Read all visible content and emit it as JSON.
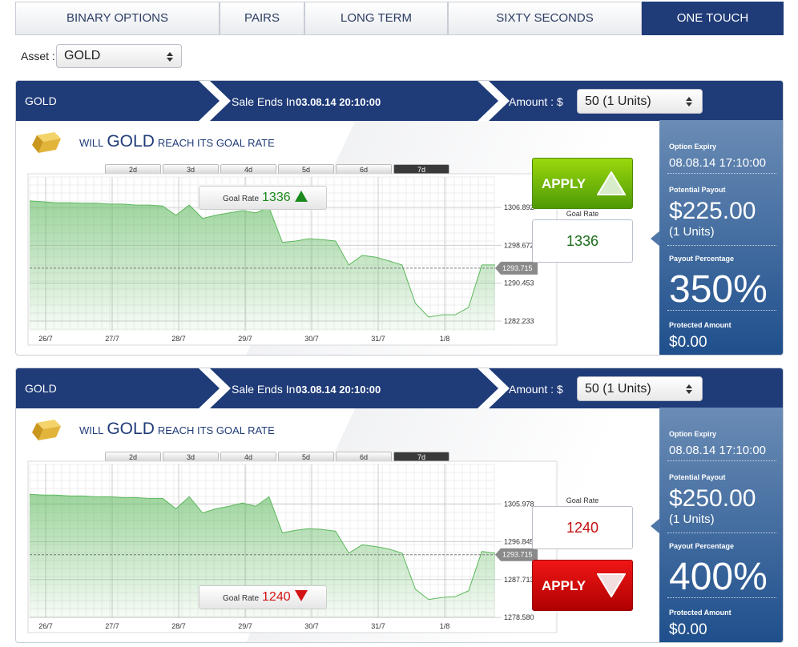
{
  "tabs": [
    "BINARY OPTIONS",
    "PAIRS",
    "LONG TERM",
    "SIXTY SECONDS",
    "ONE TOUCH"
  ],
  "asset": {
    "label": "Asset :",
    "value": "GOLD"
  },
  "panels": [
    {
      "asset": "GOLD",
      "sale_label": "Sale Ends In",
      "sale_time": "03.08.14 20:10:00",
      "amount_label": "Amount : $",
      "amount_value": "50 (1 Units)",
      "headline": {
        "will": "WILL",
        "asset": "GOLD",
        "rest": "REACH ITS GOAL RATE"
      },
      "ranges": [
        "2d",
        "3d",
        "4d",
        "5d",
        "6d",
        "7d"
      ],
      "chart": {
        "type": "area",
        "color": "#5cb85c",
        "x_labels": [
          "26/7",
          "27/7",
          "28/7",
          "29/7",
          "30/7",
          "31/7",
          "1/8"
        ],
        "values": [
          1308.3,
          1308.1,
          1307.9,
          1307.9,
          1307.8,
          1307.8,
          1307.6,
          1307.6,
          1307.4,
          1307.4,
          1307.2,
          1305.2,
          1307.4,
          1304.5,
          1305.2,
          1305.7,
          1306.2,
          1305.7,
          1306.9,
          1299.3,
          1299.6,
          1300.1,
          1299.9,
          1299.6,
          1294.4,
          1296.5,
          1296.1,
          1295.3,
          1294.4,
          1286.1,
          1283.1,
          1283.6,
          1283.6,
          1285.2,
          1294.4,
          1294.4
        ],
        "ylim": [
          1280.15,
          1313.49
        ],
        "yticks": [
          1306.892,
          1298.672,
          1290.453,
          1282.233
        ],
        "current": 1293.715,
        "grid": true
      },
      "direction": "up",
      "goal_rate_label": "Goal Rate",
      "goal_rate": "1336",
      "apply": "APPLY",
      "expiry_label": "Option Expiry",
      "expiry": "08.08.14 17:10:00",
      "payout_label": "Potential Payout",
      "payout": "$225.00",
      "units": "(1 Units)",
      "pct_label": "Payout Percentage",
      "pct": "350%",
      "protected_label": "Protected Amount",
      "protected": "$0.00"
    },
    {
      "asset": "GOLD",
      "sale_label": "Sale Ends In",
      "sale_time": "03.08.14 20:10:00",
      "amount_label": "Amount : $",
      "amount_value": "50 (1 Units)",
      "headline": {
        "will": "WILL",
        "asset": "GOLD",
        "rest": "REACH ITS GOAL RATE"
      },
      "ranges": [
        "2d",
        "3d",
        "4d",
        "5d",
        "6d",
        "7d"
      ],
      "chart": {
        "type": "area",
        "color": "#5cb85c",
        "x_labels": [
          "26/7",
          "27/7",
          "28/7",
          "29/7",
          "30/7",
          "31/7",
          "1/8"
        ],
        "values": [
          1308.3,
          1308.1,
          1308.1,
          1307.9,
          1307.9,
          1307.7,
          1307.7,
          1307.5,
          1307.5,
          1307.3,
          1307.3,
          1304.8,
          1307.7,
          1303.8,
          1304.8,
          1305.4,
          1306.2,
          1305.4,
          1307.7,
          1299.0,
          1299.6,
          1300.0,
          1299.8,
          1299.4,
          1294.1,
          1296.1,
          1295.7,
          1295.1,
          1294.1,
          1285.4,
          1282.9,
          1283.4,
          1283.6,
          1285.0,
          1294.5,
          1294.1
        ],
        "ylim": [
          1278.4,
          1315.5
        ],
        "yticks": [
          1305.978,
          1296.845,
          1287.713,
          {
            "value": 1278.58,
            "label": "1278.580"
          }
        ],
        "current": 1293.715,
        "grid": true
      },
      "direction": "down",
      "goal_rate_label": "Goal Rate",
      "goal_rate": "1240",
      "apply": "APPLY",
      "expiry_label": "Option Expiry",
      "expiry": "08.08.14 17:10:00",
      "payout_label": "Potential Payout",
      "payout": "$250.00",
      "units": "(1 Units)",
      "pct_label": "Payout Percentage",
      "pct": "400%",
      "protected_label": "Protected Amount",
      "protected": "$0.00"
    }
  ]
}
